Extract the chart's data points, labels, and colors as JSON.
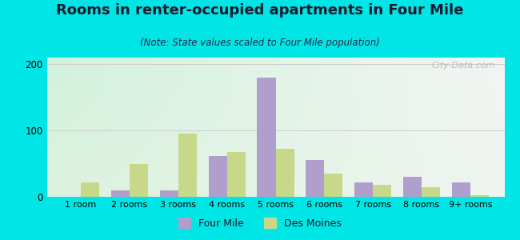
{
  "title": "Rooms in renter-occupied apartments in Four Mile",
  "subtitle": "(Note: State values scaled to Four Mile population)",
  "categories": [
    "1 room",
    "2 rooms",
    "3 rooms",
    "4 rooms",
    "5 rooms",
    "6 rooms",
    "7 rooms",
    "8 rooms",
    "9+ rooms"
  ],
  "four_mile": [
    0,
    10,
    10,
    62,
    180,
    55,
    22,
    30,
    22
  ],
  "des_moines": [
    22,
    50,
    95,
    68,
    72,
    35,
    18,
    15,
    3
  ],
  "four_mile_color": "#b09fcc",
  "des_moines_color": "#c8d88a",
  "ylim": [
    0,
    210
  ],
  "yticks": [
    0,
    100,
    200
  ],
  "background_outer": "#00e5e5",
  "grid_color": "#cccccc",
  "title_fontsize": 13,
  "subtitle_fontsize": 8.5,
  "legend_labels": [
    "Four Mile",
    "Des Moines"
  ],
  "bar_width": 0.38,
  "watermark": "City-Data.com"
}
